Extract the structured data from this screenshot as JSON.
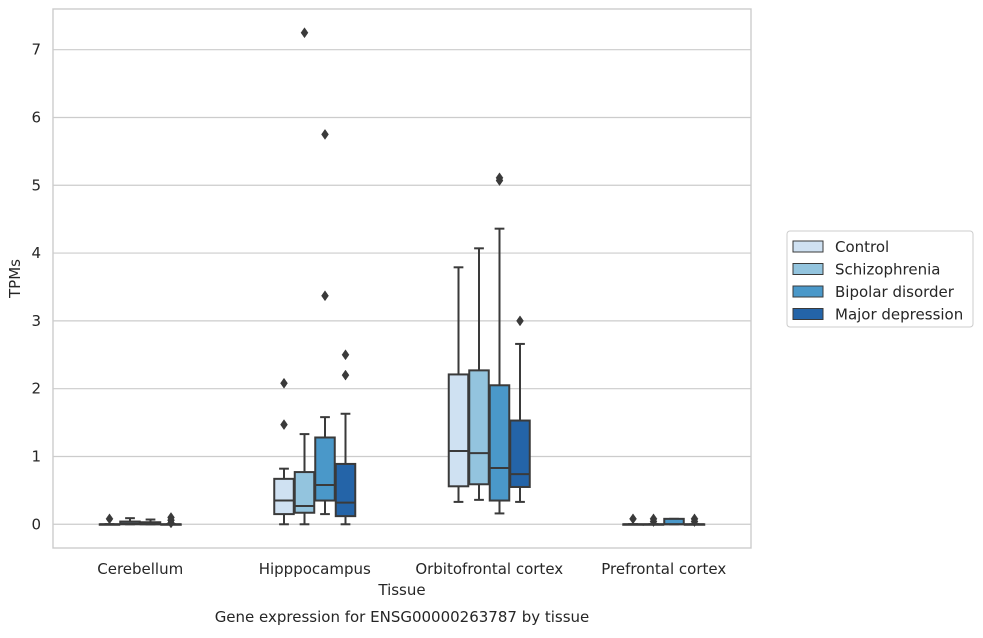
{
  "chart_data": {
    "type": "box",
    "caption": "Gene expression for ENSG00000263787 by tissue",
    "xlabel": "Tissue",
    "ylabel": "TPMs",
    "ylim": [
      -0.35,
      7.6
    ],
    "yticks": [
      0,
      1,
      2,
      3,
      4,
      5,
      6,
      7
    ],
    "grid": "horizontal",
    "legend_position": "right",
    "categories": [
      "Cerebellum",
      "Hipppocampus",
      "Orbitofrontal cortex",
      "Prefrontal cortex"
    ],
    "series": [
      {
        "name": "Control",
        "color": "#cfe1f2",
        "boxes": [
          {
            "q1": 0.0,
            "median": 0.0,
            "q3": 0.0,
            "whisker_low": 0.0,
            "whisker_high": 0.0,
            "outliers": [
              0.08
            ]
          },
          {
            "q1": 0.15,
            "median": 0.35,
            "q3": 0.67,
            "whisker_low": 0.0,
            "whisker_high": 0.82,
            "outliers": [
              1.47,
              2.08
            ]
          },
          {
            "q1": 0.56,
            "median": 1.08,
            "q3": 2.21,
            "whisker_low": 0.33,
            "whisker_high": 3.79,
            "outliers": []
          },
          {
            "q1": 0.0,
            "median": 0.0,
            "q3": 0.0,
            "whisker_low": 0.0,
            "whisker_high": 0.0,
            "outliers": [
              0.08
            ]
          }
        ]
      },
      {
        "name": "Schizophrenia",
        "color": "#93c4de",
        "boxes": [
          {
            "q1": 0.0,
            "median": 0.01,
            "q3": 0.04,
            "whisker_low": 0.0,
            "whisker_high": 0.09,
            "outliers": []
          },
          {
            "q1": 0.17,
            "median": 0.27,
            "q3": 0.77,
            "whisker_low": 0.0,
            "whisker_high": 1.33,
            "outliers": [
              7.25
            ]
          },
          {
            "q1": 0.59,
            "median": 1.05,
            "q3": 2.27,
            "whisker_low": 0.36,
            "whisker_high": 4.07,
            "outliers": []
          },
          {
            "q1": 0.0,
            "median": 0.0,
            "q3": 0.0,
            "whisker_low": 0.0,
            "whisker_high": 0.0,
            "outliers": [
              0.04,
              0.08
            ]
          }
        ]
      },
      {
        "name": "Bipolar disorder",
        "color": "#4a98c9",
        "boxes": [
          {
            "q1": 0.0,
            "median": 0.0,
            "q3": 0.03,
            "whisker_low": 0.0,
            "whisker_high": 0.07,
            "outliers": []
          },
          {
            "q1": 0.35,
            "median": 0.58,
            "q3": 1.28,
            "whisker_low": 0.15,
            "whisker_high": 1.58,
            "outliers": [
              3.37,
              5.75
            ]
          },
          {
            "q1": 0.35,
            "median": 0.83,
            "q3": 2.05,
            "whisker_low": 0.16,
            "whisker_high": 4.36,
            "outliers": [
              5.07,
              5.11
            ]
          },
          {
            "q1": 0.0,
            "median": 0.0,
            "q3": 0.08,
            "whisker_low": 0.0,
            "whisker_high": 0.08,
            "outliers": []
          }
        ]
      },
      {
        "name": "Major depression",
        "color": "#2464a8",
        "boxes": [
          {
            "q1": 0.0,
            "median": 0.0,
            "q3": 0.0,
            "whisker_low": 0.0,
            "whisker_high": 0.0,
            "outliers": [
              0.02,
              0.06,
              0.1
            ]
          },
          {
            "q1": 0.12,
            "median": 0.32,
            "q3": 0.89,
            "whisker_low": 0.0,
            "whisker_high": 1.63,
            "outliers": [
              2.2,
              2.5
            ]
          },
          {
            "q1": 0.55,
            "median": 0.74,
            "q3": 1.53,
            "whisker_low": 0.33,
            "whisker_high": 2.66,
            "outliers": [
              3.0
            ]
          },
          {
            "q1": 0.0,
            "median": 0.0,
            "q3": 0.0,
            "whisker_low": 0.0,
            "whisker_high": 0.0,
            "outliers": [
              0.04,
              0.08
            ]
          }
        ]
      }
    ]
  }
}
